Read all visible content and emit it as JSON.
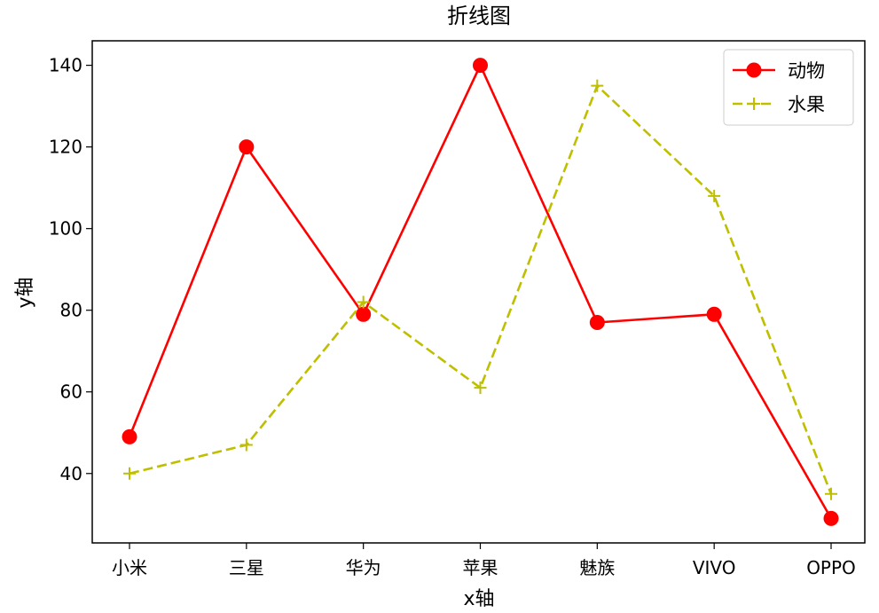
{
  "chart_data": {
    "type": "line",
    "title": "折线图",
    "xlabel": "x轴",
    "ylabel": "y轴",
    "categories": [
      "小米",
      "三星",
      "华为",
      "苹果",
      "魅族",
      "VIVO",
      "OPPO"
    ],
    "ylim": [
      23,
      146
    ],
    "yticks": [
      40,
      60,
      80,
      100,
      120,
      140
    ],
    "grid": false,
    "legend": {
      "position": "top-right"
    },
    "series": [
      {
        "name": "动物",
        "values": [
          49,
          120,
          79,
          140,
          77,
          79,
          29
        ],
        "color": "#ff0000",
        "line_style": "solid",
        "marker": "circle"
      },
      {
        "name": "水果",
        "values": [
          40,
          47,
          82,
          61,
          135,
          108,
          35
        ],
        "color": "#bfbf00",
        "line_style": "dashed",
        "marker": "plus"
      }
    ]
  }
}
